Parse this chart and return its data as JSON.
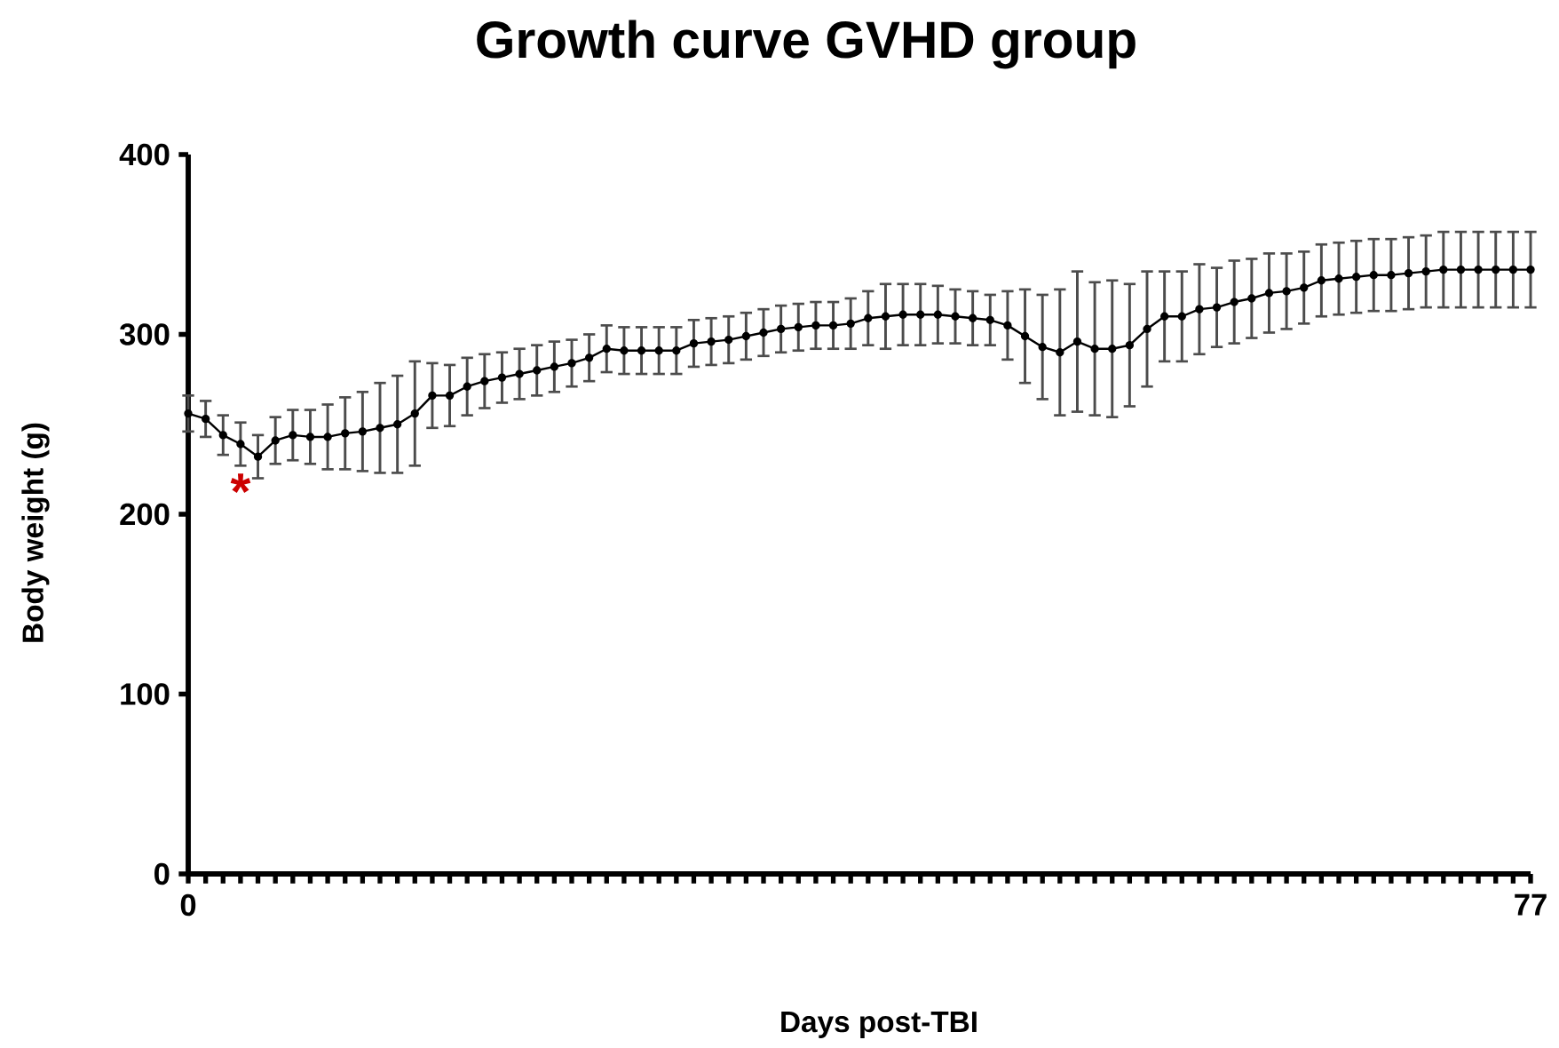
{
  "chart_data": {
    "type": "line",
    "title": "Growth curve GVHD group",
    "xlabel": "Days post-TBI",
    "ylabel": "Body weight (g)",
    "x": [
      0,
      1,
      2,
      3,
      4,
      5,
      6,
      7,
      8,
      9,
      10,
      11,
      12,
      13,
      14,
      15,
      16,
      17,
      18,
      19,
      20,
      21,
      22,
      23,
      24,
      25,
      26,
      27,
      28,
      29,
      30,
      31,
      32,
      33,
      34,
      35,
      36,
      37,
      38,
      39,
      40,
      41,
      42,
      43,
      44,
      45,
      46,
      47,
      48,
      49,
      50,
      51,
      52,
      53,
      54,
      55,
      56,
      57,
      58,
      59,
      60,
      61,
      62,
      63,
      64,
      65,
      66,
      67,
      68,
      69,
      70,
      71,
      72,
      73,
      74,
      75,
      76,
      77
    ],
    "series": [
      {
        "color": "#000000",
        "values": [
          256,
          253,
          244,
          239,
          232,
          241,
          244,
          243,
          243,
          245,
          246,
          248,
          250,
          256,
          266,
          266,
          271,
          274,
          276,
          278,
          280,
          282,
          284,
          287,
          292,
          291,
          291,
          291,
          291,
          295,
          296,
          297,
          299,
          301,
          303,
          304,
          305,
          305,
          306,
          309,
          310,
          311,
          311,
          311,
          310,
          309,
          308,
          305,
          299,
          293,
          290,
          296,
          292,
          292,
          294,
          303,
          310,
          310,
          314,
          315,
          318,
          320,
          323,
          324,
          326,
          330,
          331,
          332,
          333,
          333,
          334,
          335,
          336,
          336,
          336,
          336,
          336,
          336
        ],
        "errors": [
          10,
          10,
          11,
          12,
          12,
          13,
          14,
          15,
          18,
          20,
          22,
          25,
          27,
          29,
          18,
          17,
          16,
          15,
          14,
          14,
          14,
          14,
          13,
          13,
          13,
          13,
          13,
          13,
          13,
          13,
          13,
          13,
          13,
          13,
          13,
          13,
          13,
          13,
          14,
          15,
          18,
          17,
          17,
          16,
          15,
          15,
          14,
          19,
          26,
          29,
          35,
          39,
          37,
          38,
          34,
          32,
          25,
          25,
          25,
          22,
          23,
          22,
          22,
          21,
          20,
          20,
          20,
          20,
          20,
          20,
          20,
          20,
          21,
          21,
          21,
          21,
          21,
          21
        ]
      }
    ],
    "xlim": [
      0,
      77
    ],
    "xticks": [
      0,
      {
        "value": 1,
        "label": null
      },
      {
        "value": 2,
        "label": null
      },
      {
        "value": 3,
        "label": null
      },
      {
        "value": 4,
        "label": null
      },
      {
        "value": 5,
        "label": null
      },
      {
        "value": 6,
        "label": null
      },
      {
        "value": 7,
        "label": null
      },
      {
        "value": 8,
        "label": null
      },
      {
        "value": 9,
        "label": null
      },
      {
        "value": 10,
        "label": null
      },
      {
        "value": 11,
        "label": null
      },
      {
        "value": 12,
        "label": null
      },
      {
        "value": 13,
        "label": null
      },
      {
        "value": 14,
        "label": null
      },
      {
        "value": 15,
        "label": null
      },
      {
        "value": 16,
        "label": null
      },
      {
        "value": 17,
        "label": null
      },
      {
        "value": 18,
        "label": null
      },
      {
        "value": 19,
        "label": null
      },
      {
        "value": 20,
        "label": null
      },
      {
        "value": 21,
        "label": null
      },
      {
        "value": 22,
        "label": null
      },
      {
        "value": 23,
        "label": null
      },
      {
        "value": 24,
        "label": null
      },
      {
        "value": 25,
        "label": null
      },
      {
        "value": 26,
        "label": null
      },
      {
        "value": 27,
        "label": null
      },
      {
        "value": 28,
        "label": null
      },
      {
        "value": 29,
        "label": null
      },
      {
        "value": 30,
        "label": null
      },
      {
        "value": 31,
        "label": null
      },
      {
        "value": 32,
        "label": null
      },
      {
        "value": 33,
        "label": null
      },
      {
        "value": 34,
        "label": null
      },
      {
        "value": 35,
        "label": null
      },
      {
        "value": 36,
        "label": null
      },
      {
        "value": 37,
        "label": null
      },
      {
        "value": 38,
        "label": null
      },
      {
        "value": 39,
        "label": null
      },
      {
        "value": 40,
        "label": null
      },
      {
        "value": 41,
        "label": null
      },
      {
        "value": 42,
        "label": null
      },
      {
        "value": 43,
        "label": null
      },
      {
        "value": 44,
        "label": null
      },
      {
        "value": 45,
        "label": null
      },
      {
        "value": 46,
        "label": null
      },
      {
        "value": 47,
        "label": null
      },
      {
        "value": 48,
        "label": null
      },
      {
        "value": 49,
        "label": null
      },
      {
        "value": 50,
        "label": null
      },
      {
        "value": 51,
        "label": null
      },
      {
        "value": 52,
        "label": null
      },
      {
        "value": 53,
        "label": null
      },
      {
        "value": 54,
        "label": null
      },
      {
        "value": 55,
        "label": null
      },
      {
        "value": 56,
        "label": null
      },
      {
        "value": 57,
        "label": null
      },
      {
        "value": 58,
        "label": null
      },
      {
        "value": 59,
        "label": null
      },
      {
        "value": 60,
        "label": null
      },
      {
        "value": 61,
        "label": null
      },
      {
        "value": 62,
        "label": null
      },
      {
        "value": 63,
        "label": null
      },
      {
        "value": 64,
        "label": null
      },
      {
        "value": 65,
        "label": null
      },
      {
        "value": 66,
        "label": null
      },
      {
        "value": 67,
        "label": null
      },
      {
        "value": 68,
        "label": null
      },
      {
        "value": 69,
        "label": null
      },
      {
        "value": 70,
        "label": null
      },
      {
        "value": 71,
        "label": null
      },
      {
        "value": 72,
        "label": null
      },
      {
        "value": 73,
        "label": null
      },
      {
        "value": 74,
        "label": null
      },
      {
        "value": 75,
        "label": null
      },
      {
        "value": 76,
        "label": null
      },
      77
    ],
    "ylim": [
      0,
      400
    ],
    "yticks": [
      0,
      100,
      200,
      300,
      400
    ],
    "marker": "circle",
    "line_style": "solid",
    "annotations": [
      {
        "text": "*",
        "x": 3,
        "y": 239
      }
    ]
  }
}
